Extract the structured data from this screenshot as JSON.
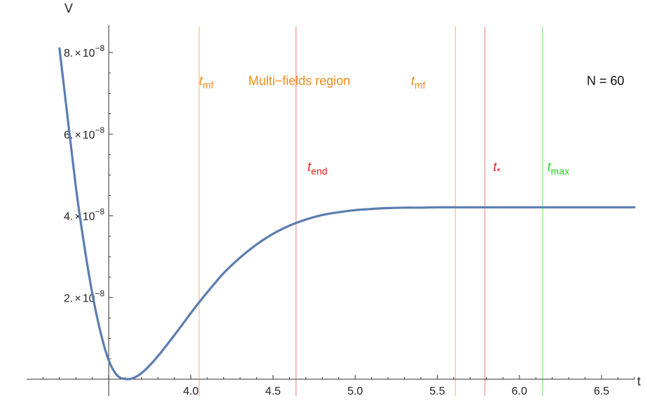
{
  "chart_data": {
    "type": "line",
    "xlabel": "t",
    "ylabel": "V",
    "xlim": [
      3.0,
      6.7
    ],
    "ylim": [
      0,
      8.6e-08
    ],
    "x_ticks": [
      {
        "value": 4.0,
        "label": "4.0"
      },
      {
        "value": 4.5,
        "label": "4.5"
      },
      {
        "value": 5.0,
        "label": "5.0"
      },
      {
        "value": 5.5,
        "label": "5.5"
      },
      {
        "value": 6.0,
        "label": "6.0"
      },
      {
        "value": 6.5,
        "label": "6.5"
      }
    ],
    "y_ticks": [
      {
        "value": 2e-08,
        "mantissa": "2.",
        "times": "×",
        "base": "10",
        "exp": "−8"
      },
      {
        "value": 4e-08,
        "mantissa": "4.",
        "times": "×",
        "base": "10",
        "exp": "−8"
      },
      {
        "value": 6e-08,
        "mantissa": "6.",
        "times": "×",
        "base": "10",
        "exp": "−8"
      },
      {
        "value": 8e-08,
        "mantissa": "8.",
        "times": "×",
        "base": "10",
        "exp": "−8"
      }
    ],
    "series": [
      {
        "color": "#5b7db1",
        "x": [
          3.2,
          3.25,
          3.3,
          3.35,
          3.4,
          3.45,
          3.5,
          3.55,
          3.6,
          3.65,
          3.7,
          3.75,
          3.8,
          3.85,
          3.9,
          3.95,
          4.0,
          4.05,
          4.1,
          4.15,
          4.2,
          4.3,
          4.4,
          4.5,
          4.6,
          4.7,
          4.8,
          4.9,
          5.0,
          5.1,
          5.2,
          5.3,
          5.4,
          5.5,
          5.6,
          5.7,
          5.8,
          6.0,
          6.2,
          6.4,
          6.6,
          6.7
        ],
        "y": [
          8.1e-08,
          6.4e-08,
          4.7e-08,
          3.3e-08,
          2.1e-08,
          1.15e-08,
          4.6e-09,
          1e-09,
          5e-11,
          3e-10,
          1.5e-09,
          3.4e-09,
          5.7e-09,
          8.2e-09,
          1.08e-08,
          1.35e-08,
          1.62e-08,
          1.88e-08,
          2.13e-08,
          2.37e-08,
          2.6e-08,
          2.98e-08,
          3.3e-08,
          3.56e-08,
          3.76e-08,
          3.91e-08,
          4.02e-08,
          4.09e-08,
          4.14e-08,
          4.17e-08,
          4.19e-08,
          4.2e-08,
          4.2e-08,
          4.21e-08,
          4.21e-08,
          4.21e-08,
          4.21e-08,
          4.21e-08,
          4.21e-08,
          4.21e-08,
          4.21e-08,
          4.21e-08
        ]
      }
    ],
    "vertical_lines": [
      {
        "x": 4.05,
        "color": "#f5c08a"
      },
      {
        "x": 4.64,
        "color": "#f09090"
      },
      {
        "x": 5.61,
        "color": "#f5c08a"
      },
      {
        "x": 5.79,
        "color": "#f09090"
      },
      {
        "x": 6.14,
        "color": "#8fe88f"
      }
    ],
    "annotations": [
      {
        "italic": "t",
        "sub": "mf",
        "x": 4.05,
        "y": 7.2e-08,
        "color": "#f28a1a"
      },
      {
        "text": "Multi−fields region",
        "x": 4.35,
        "y": 7.2e-08,
        "color": "#f28a1a"
      },
      {
        "italic": "t",
        "sub": "mf",
        "x": 5.34,
        "y": 7.2e-08,
        "color": "#f28a1a"
      },
      {
        "text": "N = 60",
        "x": 6.41,
        "y": 7.2e-08,
        "color": "#111111"
      },
      {
        "italic": "t",
        "sub": "end",
        "x": 4.71,
        "y": 5.1e-08,
        "color": "#e8201c"
      },
      {
        "italic": "t",
        "sub": "*",
        "x": 5.84,
        "y": 5.1e-08,
        "color": "#e8201c"
      },
      {
        "italic": "t",
        "sub": "max",
        "x": 6.17,
        "y": 5.1e-08,
        "color": "#2bd22b"
      }
    ]
  }
}
